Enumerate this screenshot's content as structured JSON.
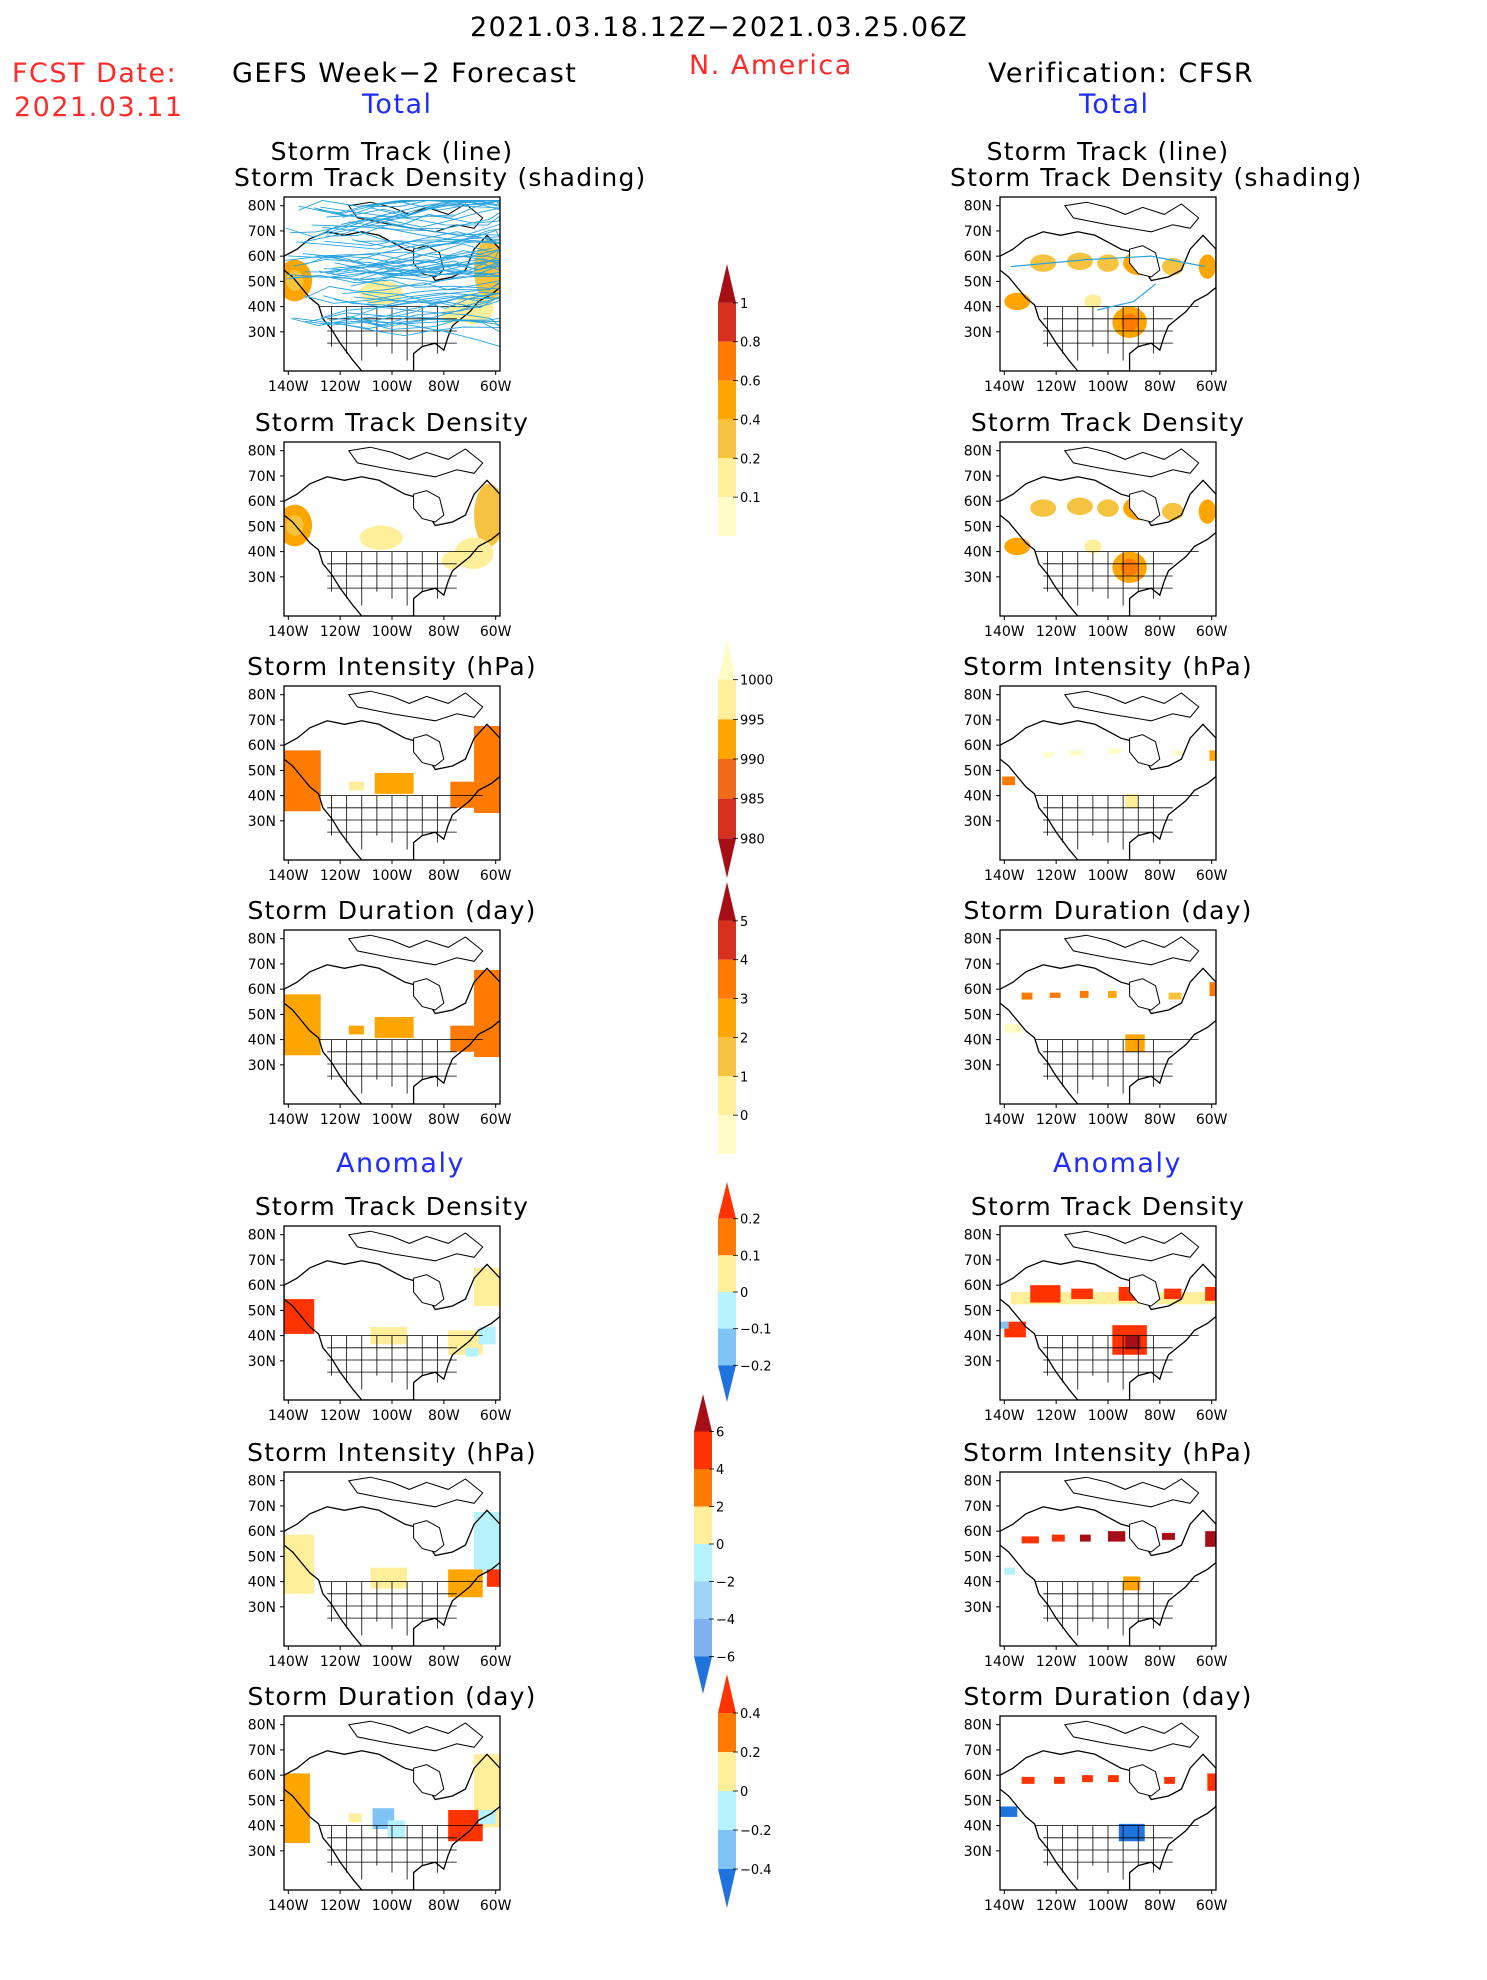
{
  "header": {
    "period": "2021.03.18.12Z−2021.03.25.06Z",
    "fcst_label": "FCST Date:",
    "fcst_date": "2021.03.11",
    "forecast_title": "GEFS Week−2 Forecast",
    "region": "N. America",
    "verification_title": "Verification: CFSR"
  },
  "sections": {
    "total": "Total",
    "anomaly": "Anomaly"
  },
  "map_axes": {
    "lat_labels": [
      "80N",
      "70N",
      "60N",
      "50N",
      "40N",
      "30N"
    ],
    "lon_labels": [
      "140W",
      "120W",
      "100W",
      "80W",
      "60W"
    ]
  },
  "panels": {
    "left": [
      {
        "title": [
          "Storm Track (line)",
          "Storm Track Density (shading)"
        ],
        "kind": "tracks",
        "shading": "fc_density"
      },
      {
        "title": [
          "Storm Track Density"
        ],
        "kind": "field",
        "shading": "fc_density"
      },
      {
        "title": [
          "Storm Intensity (hPa)"
        ],
        "kind": "field",
        "shading": "fc_intensity"
      },
      {
        "title": [
          "Storm Duration (day)"
        ],
        "kind": "field",
        "shading": "fc_duration"
      },
      {
        "title": [
          "Storm Track Density"
        ],
        "kind": "field",
        "shading": "fc_anom_density"
      },
      {
        "title": [
          "Storm Intensity (hPa)"
        ],
        "kind": "field",
        "shading": "fc_anom_intensity"
      },
      {
        "title": [
          "Storm Duration (day)"
        ],
        "kind": "field",
        "shading": "fc_anom_duration"
      }
    ],
    "right": [
      {
        "title": [
          "Storm Track (line)",
          "Storm Track Density (shading)"
        ],
        "kind": "tracks",
        "shading": "ob_density"
      },
      {
        "title": [
          "Storm Track Density"
        ],
        "kind": "field",
        "shading": "ob_density"
      },
      {
        "title": [
          "Storm Intensity (hPa)"
        ],
        "kind": "field",
        "shading": "ob_intensity"
      },
      {
        "title": [
          "Storm Duration (day)"
        ],
        "kind": "field",
        "shading": "ob_duration"
      },
      {
        "title": [
          "Storm Track Density"
        ],
        "kind": "field",
        "shading": "ob_anom_density"
      },
      {
        "title": [
          "Storm Intensity (hPa)"
        ],
        "kind": "field",
        "shading": "ob_anom_intensity"
      },
      {
        "title": [
          "Storm Duration (day)"
        ],
        "kind": "field",
        "shading": "ob_anom_duration"
      }
    ]
  },
  "colorbars": [
    {
      "name": "density",
      "labels": [
        "1",
        "0.8",
        "0.6",
        "0.4",
        "0.2",
        "0.1"
      ],
      "colors": [
        "#a50f15",
        "#d7301f",
        "#fe7a00",
        "#ffa500",
        "#f6c340",
        "#ffee9a",
        "#fffcc8"
      ]
    },
    {
      "name": "intensity",
      "labels": [
        "1000",
        "995",
        "990",
        "985",
        "980"
      ],
      "colors": [
        "#fffcc8",
        "#ffee9a",
        "#ffa500",
        "#f06a1a",
        "#d7301f",
        "#a50f15"
      ]
    },
    {
      "name": "duration",
      "labels": [
        "5",
        "4",
        "3",
        "2",
        "1",
        "0"
      ],
      "colors": [
        "#a50f15",
        "#d7301f",
        "#fe7a00",
        "#ffa500",
        "#f6c340",
        "#ffee9a",
        "#fffcc8"
      ]
    },
    {
      "name": "anom-density",
      "labels": [
        "0.2",
        "0.1",
        "0",
        "−0.1",
        "−0.2"
      ],
      "colors": [
        "#ff3300",
        "#fe7a00",
        "#ffee9a",
        "#b5f2fb",
        "#7fc4f5",
        "#2072dd"
      ]
    },
    {
      "name": "anom-intensity",
      "labels": [
        "6",
        "4",
        "2",
        "0",
        "−2",
        "−4",
        "−6"
      ],
      "colors": [
        "#a50f15",
        "#ff3300",
        "#fe7a00",
        "#ffee9a",
        "#b5f2fb",
        "#9fd3f7",
        "#7fb0f0",
        "#2072dd"
      ]
    },
    {
      "name": "anom-duration",
      "labels": [
        "0.4",
        "0.2",
        "0",
        "−0.2",
        "−0.4"
      ],
      "colors": [
        "#ff3300",
        "#fe7a00",
        "#ffee9a",
        "#b5f2fb",
        "#7fc4f5",
        "#2072dd"
      ]
    }
  ]
}
